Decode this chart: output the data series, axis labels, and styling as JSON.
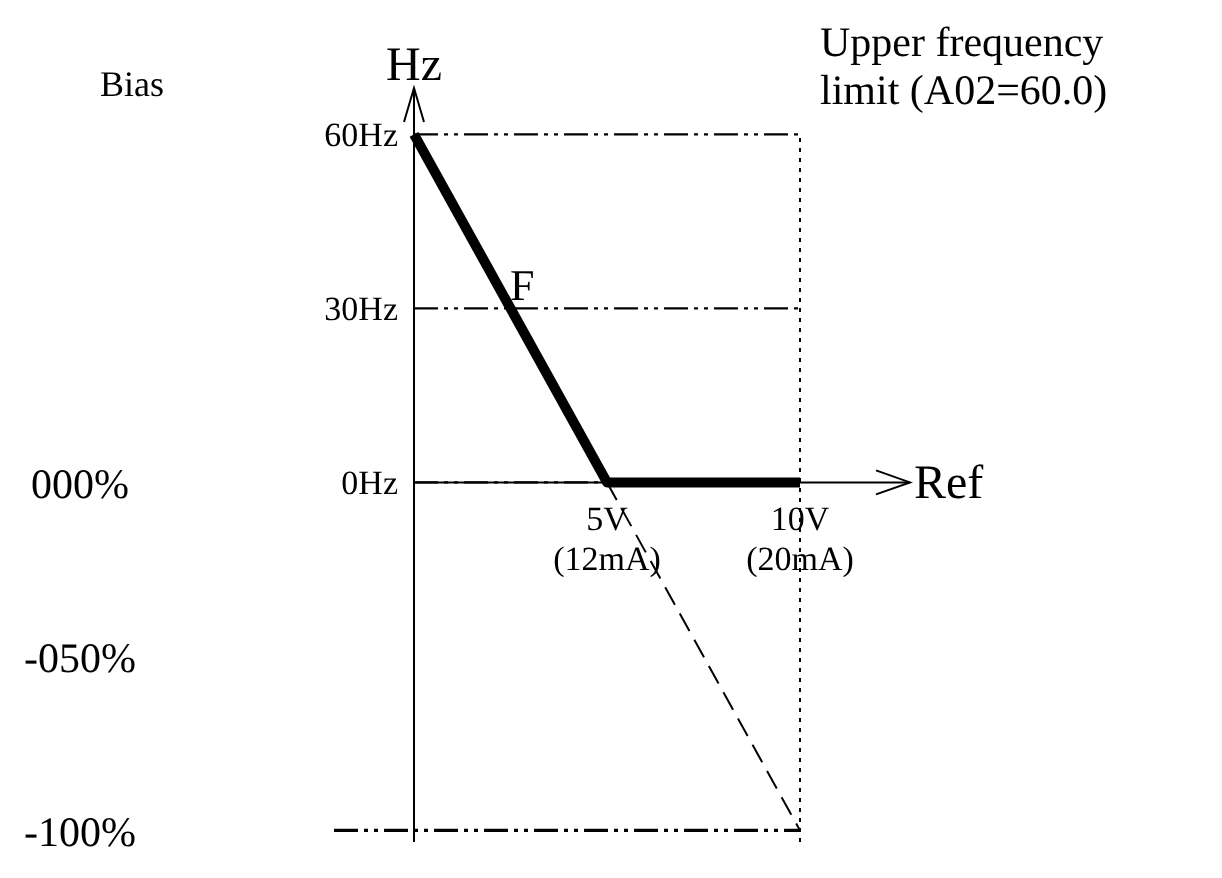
{
  "chart_data": {
    "type": "line",
    "xlabel": "Ref",
    "ylabel": "Hz",
    "categories": [
      null,
      "5V\n(12mA)",
      "10V\n(20mA)"
    ],
    "ylim": [
      -62,
      68
    ],
    "yticks": [
      {
        "value": 60,
        "label": "60Hz"
      },
      {
        "value": 30,
        "label": "30Hz"
      },
      {
        "value": 0,
        "label": "0Hz"
      }
    ],
    "y2lim": [
      -100,
      0
    ],
    "y2ticks": [
      {
        "value": 0,
        "label": "000%"
      },
      {
        "value": -50,
        "label": "-050%"
      },
      {
        "value": -100,
        "label": "-100%"
      }
    ],
    "series": [
      {
        "color": "#000000",
        "values": [
          60,
          0,
          0
        ],
        "line_style": "solid"
      },
      {
        "color": "#000000",
        "values": [
          null,
          0,
          -60
        ],
        "line_style": "dashed"
      }
    ],
    "ref_lines": [
      {
        "axis": "y2",
        "value": -100,
        "line_style": "dashdotdot"
      },
      {
        "axis": "x",
        "value": "10V\n(20mA)",
        "line_style": "dotted"
      }
    ],
    "annotations": [
      "Bias",
      "Upper frequency\nlimit (A02=60.0)",
      "F"
    ],
    "grid": "y",
    "marker": "none"
  }
}
